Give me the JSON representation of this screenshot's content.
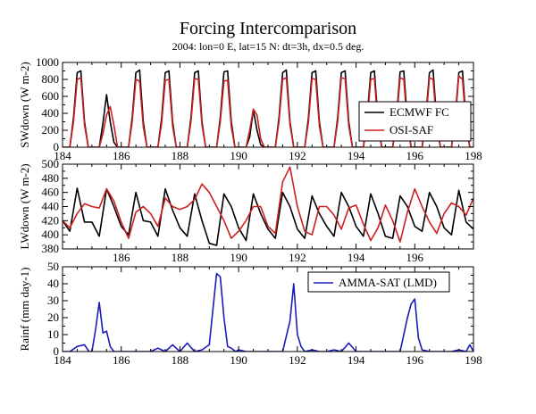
{
  "title": "Forcing Intercomparison",
  "subtitle": "2004: lon=0 E, lat=15 N: dt=3h, dx=0.5 deg.",
  "chart_data": [
    {
      "type": "line",
      "ylabel": "SWdown (W m-2)",
      "xlim": [
        184,
        198
      ],
      "ylim": [
        0,
        1000
      ],
      "xticks": [
        184,
        186,
        188,
        190,
        192,
        194,
        196,
        198
      ],
      "xtick_labels": [
        "184",
        "186",
        "188",
        "190",
        "192",
        "194",
        "196",
        "198"
      ],
      "yticks": [
        0,
        200,
        400,
        600,
        800,
        1000
      ],
      "ytick_labels": [
        "0",
        "200",
        "400",
        "600",
        "800",
        "1000"
      ],
      "legend_position": "center-right",
      "series": [
        {
          "name": "ECMWF FC",
          "color": "#000000",
          "x": [
            184.0,
            184.125,
            184.25,
            184.375,
            184.5,
            184.625,
            184.75,
            184.875,
            185.0,
            185.125,
            185.25,
            185.375,
            185.5,
            185.625,
            185.75,
            185.875,
            186.0,
            186.125,
            186.25,
            186.375,
            186.5,
            186.625,
            186.75,
            186.875,
            187.0,
            187.125,
            187.25,
            187.375,
            187.5,
            187.625,
            187.75,
            187.875,
            188.0,
            188.125,
            188.25,
            188.375,
            188.5,
            188.625,
            188.75,
            188.875,
            189.0,
            189.125,
            189.25,
            189.375,
            189.5,
            189.625,
            189.75,
            189.875,
            190.0,
            190.125,
            190.25,
            190.375,
            190.5,
            190.625,
            190.75,
            190.875,
            191.0,
            191.125,
            191.25,
            191.375,
            191.5,
            191.625,
            191.75,
            191.875,
            192.0,
            192.125,
            192.25,
            192.375,
            192.5,
            192.625,
            192.75,
            192.875,
            193.0,
            193.125,
            193.25,
            193.375,
            193.5,
            193.625,
            193.75,
            193.875,
            194.0,
            194.125,
            194.25,
            194.375,
            194.5,
            194.625,
            194.75,
            194.875,
            195.0,
            195.125,
            195.25,
            195.375,
            195.5,
            195.625,
            195.75,
            195.875,
            196.0,
            196.125,
            196.25,
            196.375,
            196.5,
            196.625,
            196.75,
            196.875,
            197.0,
            197.125,
            197.25,
            197.375,
            197.5,
            197.625,
            197.75,
            197.875,
            198.0
          ],
          "y": [
            0,
            0,
            0,
            350,
            880,
            900,
            300,
            0,
            0,
            0,
            0,
            280,
            620,
            300,
            60,
            0,
            0,
            0,
            0,
            350,
            880,
            910,
            300,
            0,
            0,
            0,
            0,
            340,
            880,
            900,
            300,
            0,
            0,
            0,
            0,
            350,
            880,
            900,
            300,
            0,
            0,
            0,
            0,
            350,
            890,
            900,
            300,
            0,
            0,
            0,
            0,
            120,
            440,
            200,
            30,
            0,
            0,
            0,
            0,
            350,
            880,
            910,
            300,
            0,
            0,
            0,
            0,
            340,
            880,
            900,
            300,
            0,
            0,
            0,
            0,
            350,
            880,
            900,
            300,
            0,
            0,
            0,
            0,
            350,
            880,
            900,
            300,
            0,
            0,
            0,
            0,
            350,
            890,
            900,
            300,
            0,
            0,
            0,
            0,
            350,
            880,
            910,
            300,
            0,
            0,
            0,
            0,
            350,
            880,
            900,
            300,
            0,
            0
          ]
        },
        {
          "name": "OSI-SAF",
          "color": "#cc2020",
          "x": [
            184.0,
            184.125,
            184.25,
            184.375,
            184.5,
            184.625,
            184.75,
            184.875,
            185.0,
            185.125,
            185.25,
            185.375,
            185.5,
            185.625,
            185.75,
            185.875,
            186.0,
            186.125,
            186.25,
            186.375,
            186.5,
            186.625,
            186.75,
            186.875,
            187.0,
            187.125,
            187.25,
            187.375,
            187.5,
            187.625,
            187.75,
            187.875,
            188.0,
            188.125,
            188.25,
            188.375,
            188.5,
            188.625,
            188.75,
            188.875,
            189.0,
            189.125,
            189.25,
            189.375,
            189.5,
            189.625,
            189.75,
            189.875,
            190.0,
            190.125,
            190.25,
            190.375,
            190.5,
            190.625,
            190.75,
            190.875,
            191.0,
            191.125,
            191.25,
            191.375,
            191.5,
            191.625,
            191.75,
            191.875,
            192.0,
            192.125,
            192.25,
            192.375,
            192.5,
            192.625,
            192.75,
            192.875,
            193.0,
            193.125,
            193.25,
            193.375,
            193.5,
            193.625,
            193.75,
            193.875,
            194.0,
            194.125,
            194.25,
            194.375,
            194.5,
            194.625,
            194.75,
            194.875,
            195.0,
            195.125,
            195.25,
            195.375,
            195.5,
            195.625,
            195.75,
            195.875,
            196.0,
            196.125,
            196.25,
            196.375,
            196.5,
            196.625,
            196.75,
            196.875,
            197.0,
            197.125,
            197.25,
            197.375,
            197.5,
            197.625,
            197.75,
            197.875,
            198.0
          ],
          "y": [
            0,
            0,
            0,
            300,
            800,
            820,
            260,
            0,
            0,
            0,
            0,
            160,
            380,
            480,
            260,
            0,
            0,
            0,
            0,
            300,
            800,
            780,
            240,
            0,
            0,
            0,
            0,
            280,
            790,
            800,
            250,
            0,
            0,
            0,
            0,
            300,
            810,
            800,
            260,
            0,
            0,
            0,
            0,
            300,
            780,
            790,
            240,
            0,
            0,
            0,
            0,
            200,
            450,
            380,
            100,
            0,
            0,
            0,
            0,
            300,
            800,
            820,
            260,
            0,
            0,
            0,
            0,
            290,
            810,
            800,
            250,
            0,
            0,
            0,
            0,
            300,
            820,
            810,
            250,
            0,
            0,
            0,
            0,
            290,
            800,
            810,
            250,
            0,
            0,
            0,
            0,
            300,
            820,
            800,
            250,
            0,
            0,
            0,
            0,
            290,
            820,
            800,
            250,
            0,
            0,
            0,
            0,
            300,
            840,
            800,
            250,
            0,
            0
          ]
        }
      ]
    },
    {
      "type": "line",
      "ylabel": "LWdown (W m-2)",
      "xlim": [
        184,
        198
      ],
      "ylim": [
        380,
        500
      ],
      "xticks": [
        186,
        188,
        190,
        192,
        194,
        196
      ],
      "xtick_labels": [
        "186",
        "188",
        "190",
        "192",
        "194",
        "196"
      ],
      "yticks": [
        380,
        400,
        420,
        440,
        460,
        480,
        500
      ],
      "ytick_labels": [
        "380",
        "400",
        "420",
        "440",
        "460",
        "480",
        "500"
      ],
      "series": [
        {
          "name": "ECMWF FC",
          "color": "#000000",
          "x": [
            184.0,
            184.25,
            184.5,
            184.75,
            185.0,
            185.25,
            185.5,
            185.75,
            186.0,
            186.25,
            186.5,
            186.75,
            187.0,
            187.25,
            187.5,
            187.75,
            188.0,
            188.25,
            188.5,
            188.75,
            189.0,
            189.25,
            189.5,
            189.75,
            190.0,
            190.25,
            190.5,
            190.75,
            191.0,
            191.25,
            191.5,
            191.75,
            192.0,
            192.25,
            192.5,
            192.75,
            193.0,
            193.25,
            193.5,
            193.75,
            194.0,
            194.25,
            194.5,
            194.75,
            195.0,
            195.25,
            195.5,
            195.75,
            196.0,
            196.25,
            196.5,
            196.75,
            197.0,
            197.25,
            197.5,
            197.75,
            198.0
          ],
          "y": [
            420,
            405,
            466,
            418,
            418,
            398,
            465,
            440,
            412,
            400,
            460,
            420,
            418,
            398,
            465,
            435,
            410,
            398,
            458,
            420,
            388,
            385,
            458,
            440,
            410,
            392,
            458,
            430,
            408,
            395,
            460,
            440,
            408,
            395,
            455,
            430,
            412,
            398,
            460,
            440,
            412,
            398,
            458,
            430,
            398,
            395,
            455,
            440,
            412,
            405,
            460,
            440,
            410,
            400,
            463,
            418,
            408
          ]
        },
        {
          "name": "OSI-SAF",
          "color": "#cc2020",
          "x": [
            184.0,
            184.25,
            184.5,
            184.75,
            185.0,
            185.25,
            185.5,
            185.75,
            186.0,
            186.25,
            186.5,
            186.75,
            187.0,
            187.25,
            187.5,
            187.75,
            188.0,
            188.25,
            188.5,
            188.75,
            189.0,
            189.25,
            189.5,
            189.75,
            190.0,
            190.25,
            190.5,
            190.75,
            191.0,
            191.25,
            191.5,
            191.75,
            192.0,
            192.25,
            192.5,
            192.75,
            193.0,
            193.25,
            193.5,
            193.75,
            194.0,
            194.25,
            194.5,
            194.75,
            195.0,
            195.25,
            195.5,
            195.75,
            196.0,
            196.25,
            196.5,
            196.75,
            197.0,
            197.25,
            197.5,
            197.75,
            198.0
          ],
          "y": [
            420,
            410,
            430,
            444,
            440,
            438,
            465,
            448,
            418,
            395,
            432,
            440,
            430,
            412,
            452,
            440,
            436,
            440,
            450,
            472,
            460,
            440,
            420,
            395,
            405,
            420,
            440,
            440,
            412,
            402,
            475,
            496,
            440,
            405,
            400,
            440,
            440,
            428,
            408,
            438,
            442,
            415,
            392,
            410,
            442,
            420,
            390,
            432,
            465,
            440,
            418,
            402,
            430,
            445,
            440,
            428,
            452
          ]
        }
      ]
    },
    {
      "type": "line",
      "ylabel": "Rainf (mm day-1)",
      "xlim": [
        184,
        198
      ],
      "ylim": [
        0,
        50
      ],
      "xticks": [
        184,
        186,
        188,
        190,
        192,
        194,
        196,
        198
      ],
      "xtick_labels": [
        "184",
        "186",
        "188",
        "190",
        "192",
        "194",
        "196",
        "198"
      ],
      "yticks": [
        0,
        10,
        20,
        30,
        40,
        50
      ],
      "ytick_labels": [
        "0",
        "10",
        "20",
        "30",
        "40",
        "50"
      ],
      "legend_position": "top-right",
      "series": [
        {
          "name": "AMMA-SAT (LMD)",
          "color": "#1a1ab8",
          "x": [
            184.0,
            184.25,
            184.5,
            184.75,
            184.9,
            185.0,
            185.125,
            185.25,
            185.375,
            185.5,
            185.625,
            185.75,
            185.9,
            186.0,
            186.25,
            186.5,
            186.75,
            187.0,
            187.25,
            187.5,
            187.75,
            188.0,
            188.25,
            188.5,
            188.75,
            189.0,
            189.125,
            189.25,
            189.375,
            189.5,
            189.625,
            189.75,
            189.9,
            190.0,
            190.25,
            190.5,
            190.75,
            191.0,
            191.25,
            191.5,
            191.75,
            191.875,
            192.0,
            192.125,
            192.25,
            192.5,
            192.75,
            193.0,
            193.25,
            193.5,
            193.75,
            194.0,
            194.25,
            194.5,
            194.75,
            195.0,
            195.25,
            195.5,
            195.75,
            195.875,
            196.0,
            196.125,
            196.25,
            196.5,
            196.75,
            197.0,
            197.25,
            197.5,
            197.75,
            197.875,
            198.0
          ],
          "y": [
            0,
            0,
            3,
            4,
            0,
            0,
            13,
            29,
            11,
            12,
            3,
            0,
            0,
            0,
            0,
            0,
            0,
            0,
            2,
            0,
            4,
            0,
            5,
            0,
            1,
            4,
            25,
            46,
            44,
            20,
            3,
            2,
            0,
            1,
            0,
            0,
            0,
            0,
            0,
            0,
            18,
            40,
            10,
            3,
            0,
            1,
            0,
            0,
            1,
            0,
            5,
            0,
            0,
            0,
            0,
            0,
            0,
            0,
            20,
            28,
            31,
            8,
            1,
            0,
            0,
            0,
            0,
            1,
            0,
            4,
            0
          ]
        }
      ]
    }
  ]
}
